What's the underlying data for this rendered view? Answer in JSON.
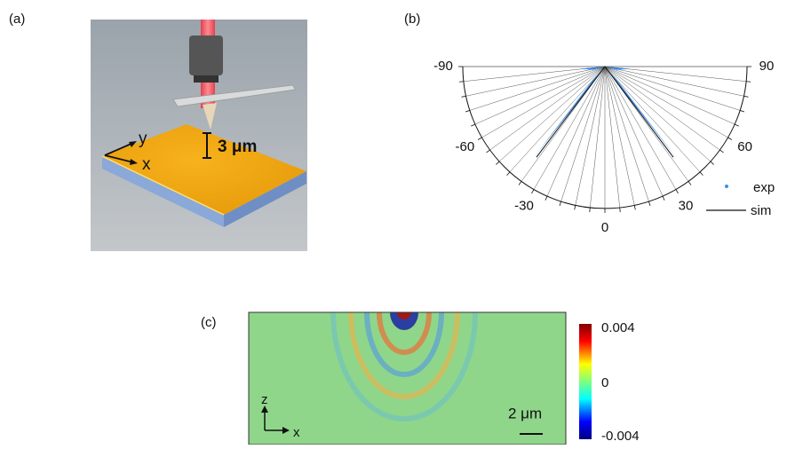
{
  "panel_a": {
    "label": "(a)",
    "axis_y": "y",
    "axis_x": "x",
    "height": "3 μm"
  },
  "panel_b": {
    "label": "(b)",
    "angle_ticks": [
      -90,
      -60,
      -30,
      0,
      30,
      60,
      90
    ],
    "legend": [
      "exp",
      "sim"
    ]
  },
  "panel_c": {
    "label": "(c)",
    "colorbar_ticks": [
      0.004,
      0,
      -0.004
    ],
    "axis_z": "z",
    "axis_x": "x",
    "scale_bar": "2 μm"
  }
}
